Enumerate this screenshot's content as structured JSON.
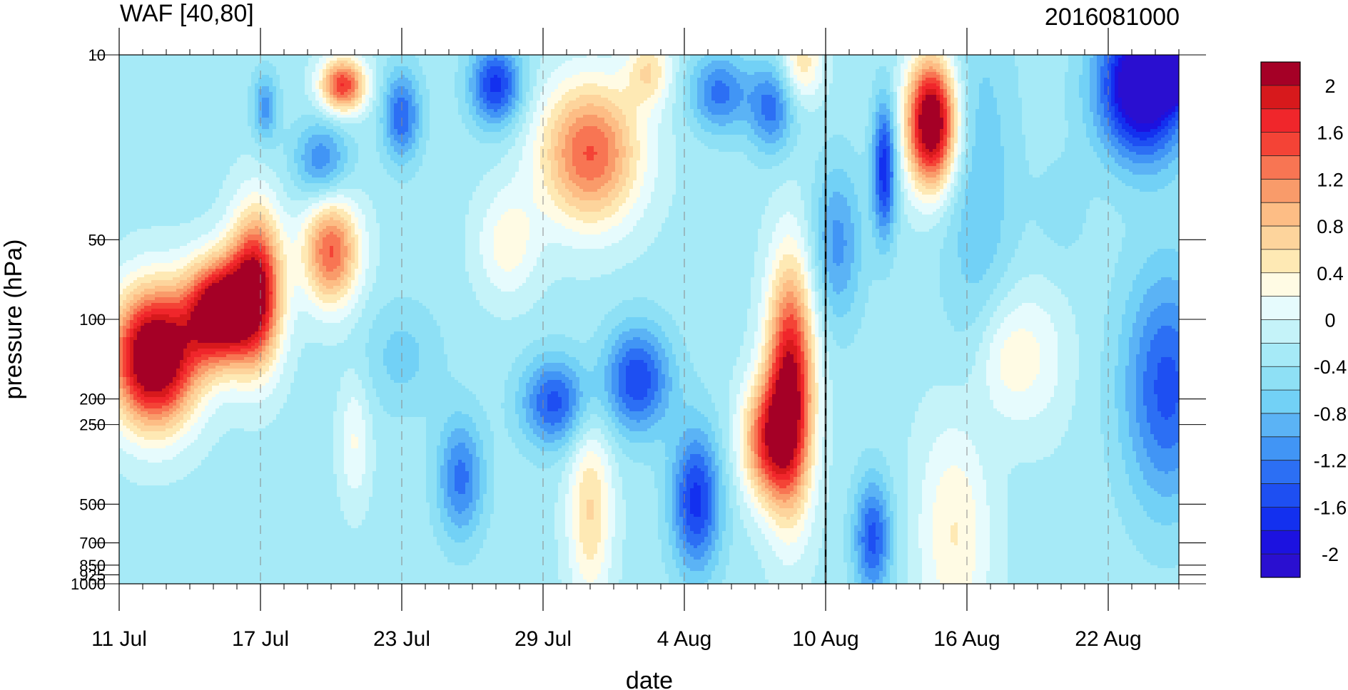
{
  "chart_data": {
    "type": "heatmap",
    "title": "WAF [40,80]",
    "subtitle": "2016081000",
    "xlabel": "date",
    "ylabel": "pressure (hPa)",
    "x_ticks": [
      "11 Jul",
      "17 Jul",
      "23 Jul",
      "29 Jul",
      "4 Aug",
      "10 Aug",
      "16 Aug",
      "22 Aug"
    ],
    "x_range": [
      "2016-07-11",
      "2016-08-25"
    ],
    "y_ticks": [
      10,
      50,
      100,
      200,
      250,
      500,
      700,
      850,
      925,
      1000
    ],
    "y_range": [
      1000,
      10
    ],
    "y_scale": "log",
    "marker_line_date": "10 Aug",
    "colorbar": {
      "labels": [
        "2",
        "1.6",
        "1.2",
        "0.8",
        "0.4",
        "0",
        "-0.4",
        "-0.8",
        "-1.2",
        "-1.6",
        "-2"
      ],
      "levels": [
        2.2,
        2.0,
        1.8,
        1.6,
        1.4,
        1.2,
        1.0,
        0.8,
        0.6,
        0.4,
        0.2,
        0.0,
        -0.2,
        -0.4,
        -0.6,
        -0.8,
        -1.0,
        -1.2,
        -1.4,
        -1.6,
        -1.8,
        -2.0,
        -2.2
      ],
      "colors": [
        "#a50026",
        "#d7191c",
        "#f0262b",
        "#f44336",
        "#f87553",
        "#f99b6a",
        "#fdbd85",
        "#fdd49c",
        "#fee9b4",
        "#fffbe4",
        "#e6fbfd",
        "#c5f3f9",
        "#a6eaf7",
        "#8ee0f5",
        "#72d1f6",
        "#5bb3f5",
        "#4195f5",
        "#2c6ff4",
        "#1e4ff2",
        "#1330ef",
        "#1c12e0",
        "#2a0fd0"
      ]
    }
  }
}
